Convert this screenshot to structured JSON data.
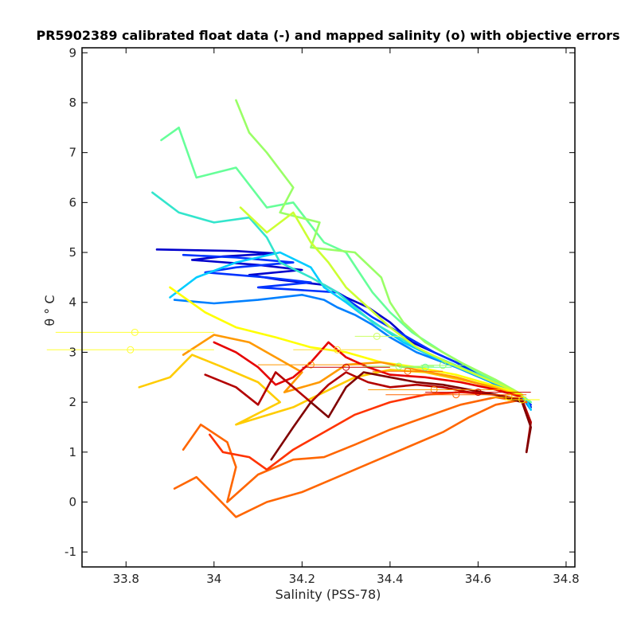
{
  "chart_data": {
    "type": "line",
    "title": "PR5902389 calibrated float data (-) and mapped salinity (o) with objective errors",
    "xlabel": "Salinity (PSS-78)",
    "ylabel": "θ ° C",
    "xlim": [
      33.7,
      34.82
    ],
    "ylim": [
      -1.3,
      9.1
    ],
    "x_ticks": [
      "33.8",
      "34",
      "34.2",
      "34.4",
      "34.6",
      "34.8"
    ],
    "x_tick_values": [
      33.8,
      34.0,
      34.2,
      34.4,
      34.6,
      34.8
    ],
    "y_ticks": [
      "-1",
      "0",
      "1",
      "2",
      "3",
      "4",
      "5",
      "6",
      "7",
      "8",
      "9"
    ],
    "y_tick_values": [
      -1,
      0,
      1,
      2,
      3,
      4,
      5,
      6,
      7,
      8,
      9
    ],
    "grid": false,
    "colormap": "jet",
    "series": [
      {
        "color": "#0000cc",
        "values": [
          [
            33.87,
            5.06
          ],
          [
            34.05,
            5.03
          ],
          [
            34.14,
            4.98
          ],
          [
            34.02,
            4.92
          ],
          [
            33.95,
            4.85
          ],
          [
            34.1,
            4.75
          ],
          [
            34.2,
            4.65
          ],
          [
            34.08,
            4.55
          ],
          [
            34.15,
            4.45
          ],
          [
            34.25,
            4.35
          ],
          [
            34.3,
            4.1
          ],
          [
            34.35,
            3.9
          ],
          [
            34.4,
            3.6
          ],
          [
            34.45,
            3.2
          ],
          [
            34.55,
            2.8
          ],
          [
            34.65,
            2.3
          ],
          [
            34.71,
            2.05
          ],
          [
            34.72,
            1.9
          ]
        ]
      },
      {
        "color": "#0033ff",
        "values": [
          [
            33.93,
            4.95
          ],
          [
            34.05,
            4.9
          ],
          [
            34.18,
            4.8
          ],
          [
            34.05,
            4.7
          ],
          [
            33.98,
            4.6
          ],
          [
            34.12,
            4.5
          ],
          [
            34.22,
            4.4
          ],
          [
            34.1,
            4.3
          ],
          [
            34.28,
            4.2
          ],
          [
            34.32,
            3.95
          ],
          [
            34.36,
            3.7
          ],
          [
            34.42,
            3.4
          ],
          [
            34.5,
            3.0
          ],
          [
            34.6,
            2.6
          ],
          [
            34.68,
            2.2
          ],
          [
            34.72,
            1.95
          ]
        ]
      },
      {
        "color": "#0080ff",
        "values": [
          [
            33.91,
            4.05
          ],
          [
            34.0,
            3.98
          ],
          [
            34.1,
            4.05
          ],
          [
            34.2,
            4.15
          ],
          [
            34.25,
            4.05
          ],
          [
            34.28,
            3.9
          ],
          [
            34.32,
            3.75
          ],
          [
            34.36,
            3.55
          ],
          [
            34.4,
            3.3
          ],
          [
            34.46,
            3.0
          ],
          [
            34.55,
            2.7
          ],
          [
            34.63,
            2.4
          ],
          [
            34.7,
            2.1
          ],
          [
            34.72,
            1.85
          ]
        ]
      },
      {
        "color": "#00ccff",
        "values": [
          [
            33.9,
            4.1
          ],
          [
            33.96,
            4.5
          ],
          [
            34.05,
            4.8
          ],
          [
            34.15,
            5.0
          ],
          [
            34.22,
            4.7
          ],
          [
            34.25,
            4.3
          ],
          [
            34.3,
            4.0
          ],
          [
            34.33,
            3.8
          ],
          [
            34.38,
            3.5
          ],
          [
            34.43,
            3.2
          ],
          [
            34.5,
            2.9
          ],
          [
            34.58,
            2.6
          ],
          [
            34.66,
            2.3
          ],
          [
            34.71,
            2.05
          ],
          [
            34.72,
            1.85
          ]
        ]
      },
      {
        "color": "#33e5cc",
        "values": [
          [
            33.86,
            6.2
          ],
          [
            33.92,
            5.8
          ],
          [
            34.0,
            5.6
          ],
          [
            34.08,
            5.7
          ],
          [
            34.12,
            5.3
          ],
          [
            34.15,
            4.8
          ],
          [
            34.22,
            4.5
          ],
          [
            34.28,
            4.2
          ],
          [
            34.32,
            3.9
          ],
          [
            34.36,
            3.6
          ],
          [
            34.42,
            3.3
          ],
          [
            34.48,
            3.0
          ],
          [
            34.56,
            2.7
          ],
          [
            34.64,
            2.4
          ],
          [
            34.7,
            2.15
          ]
        ]
      },
      {
        "color": "#66ff99",
        "values": [
          [
            33.88,
            7.25
          ],
          [
            33.92,
            7.5
          ],
          [
            33.96,
            6.5
          ],
          [
            34.05,
            6.7
          ],
          [
            34.12,
            5.9
          ],
          [
            34.18,
            6.0
          ],
          [
            34.25,
            5.2
          ],
          [
            34.3,
            5.0
          ],
          [
            34.33,
            4.6
          ],
          [
            34.36,
            4.2
          ],
          [
            34.4,
            3.8
          ],
          [
            34.45,
            3.4
          ],
          [
            34.52,
            3.0
          ],
          [
            34.6,
            2.6
          ],
          [
            34.68,
            2.25
          ],
          [
            34.72,
            2.0
          ]
        ]
      },
      {
        "color": "#99ff66",
        "values": [
          [
            34.05,
            8.05
          ],
          [
            34.08,
            7.4
          ],
          [
            34.12,
            7.0
          ],
          [
            34.18,
            6.3
          ],
          [
            34.15,
            5.8
          ],
          [
            34.24,
            5.6
          ],
          [
            34.22,
            5.1
          ],
          [
            34.32,
            5.0
          ],
          [
            34.38,
            4.5
          ],
          [
            34.4,
            4.0
          ],
          [
            34.43,
            3.6
          ],
          [
            34.48,
            3.2
          ],
          [
            34.56,
            2.8
          ],
          [
            34.64,
            2.45
          ],
          [
            34.7,
            2.15
          ]
        ]
      },
      {
        "color": "#ccff33",
        "values": [
          [
            34.06,
            5.9
          ],
          [
            34.12,
            5.4
          ],
          [
            34.18,
            5.8
          ],
          [
            34.22,
            5.2
          ],
          [
            34.26,
            4.8
          ],
          [
            34.3,
            4.3
          ],
          [
            34.35,
            3.9
          ],
          [
            34.4,
            3.5
          ],
          [
            34.46,
            3.1
          ],
          [
            34.53,
            2.8
          ],
          [
            34.61,
            2.5
          ],
          [
            34.69,
            2.2
          ]
        ]
      },
      {
        "color": "#ffff00",
        "values": [
          [
            33.9,
            4.3
          ],
          [
            33.98,
            3.8
          ],
          [
            34.05,
            3.5
          ],
          [
            34.14,
            3.3
          ],
          [
            34.22,
            3.1
          ],
          [
            34.3,
            3.0
          ],
          [
            34.38,
            2.8
          ],
          [
            34.46,
            2.7
          ],
          [
            34.55,
            2.55
          ],
          [
            34.63,
            2.35
          ],
          [
            34.7,
            2.15
          ]
        ]
      },
      {
        "color": "#ffcc00",
        "values": [
          [
            33.83,
            2.3
          ],
          [
            33.9,
            2.5
          ],
          [
            33.95,
            2.95
          ],
          [
            34.02,
            2.7
          ],
          [
            34.1,
            2.4
          ],
          [
            34.15,
            2.0
          ],
          [
            34.05,
            1.55
          ],
          [
            34.18,
            1.9
          ],
          [
            34.25,
            2.2
          ],
          [
            34.32,
            2.5
          ],
          [
            34.4,
            2.65
          ],
          [
            34.48,
            2.6
          ],
          [
            34.56,
            2.45
          ],
          [
            34.64,
            2.3
          ],
          [
            34.7,
            2.1
          ]
        ]
      },
      {
        "color": "#ff9900",
        "values": [
          [
            33.93,
            2.95
          ],
          [
            34.0,
            3.35
          ],
          [
            34.08,
            3.2
          ],
          [
            34.14,
            2.9
          ],
          [
            34.2,
            2.6
          ],
          [
            34.16,
            2.2
          ],
          [
            34.24,
            2.4
          ],
          [
            34.3,
            2.75
          ],
          [
            34.38,
            2.8
          ],
          [
            34.46,
            2.65
          ],
          [
            34.55,
            2.5
          ],
          [
            34.63,
            2.3
          ],
          [
            34.7,
            2.1
          ]
        ]
      },
      {
        "color": "#ff6600",
        "values": [
          [
            33.91,
            0.27
          ],
          [
            33.96,
            0.5
          ],
          [
            34.0,
            0.15
          ],
          [
            34.05,
            -0.3
          ],
          [
            34.12,
            0.0
          ],
          [
            34.2,
            0.2
          ],
          [
            34.28,
            0.5
          ],
          [
            34.36,
            0.8
          ],
          [
            34.44,
            1.1
          ],
          [
            34.52,
            1.4
          ],
          [
            34.58,
            1.7
          ],
          [
            34.64,
            1.95
          ],
          [
            34.7,
            2.05
          ]
        ]
      },
      {
        "color": "#ff6600",
        "values": [
          [
            33.93,
            1.05
          ],
          [
            33.97,
            1.55
          ],
          [
            34.03,
            1.2
          ],
          [
            34.05,
            0.7
          ],
          [
            34.03,
            0.0
          ],
          [
            34.1,
            0.55
          ],
          [
            34.18,
            0.85
          ],
          [
            34.25,
            0.9
          ],
          [
            34.32,
            1.15
          ],
          [
            34.4,
            1.45
          ],
          [
            34.48,
            1.7
          ],
          [
            34.56,
            1.95
          ],
          [
            34.64,
            2.1
          ],
          [
            34.71,
            2.0
          ]
        ]
      },
      {
        "color": "#ff3300",
        "values": [
          [
            33.99,
            1.35
          ],
          [
            34.02,
            1.0
          ],
          [
            34.08,
            0.9
          ],
          [
            34.12,
            0.65
          ],
          [
            34.18,
            1.05
          ],
          [
            34.25,
            1.4
          ],
          [
            34.32,
            1.75
          ],
          [
            34.4,
            2.0
          ],
          [
            34.48,
            2.15
          ],
          [
            34.56,
            2.2
          ],
          [
            34.64,
            2.15
          ],
          [
            34.7,
            2.05
          ]
        ]
      },
      {
        "color": "#e60000",
        "values": [
          [
            34.0,
            3.2
          ],
          [
            34.05,
            3.0
          ],
          [
            34.1,
            2.7
          ],
          [
            34.14,
            2.35
          ],
          [
            34.18,
            2.5
          ],
          [
            34.22,
            2.8
          ],
          [
            34.26,
            3.2
          ],
          [
            34.3,
            2.9
          ],
          [
            34.35,
            2.7
          ],
          [
            34.4,
            2.55
          ],
          [
            34.48,
            2.5
          ],
          [
            34.56,
            2.4
          ],
          [
            34.64,
            2.25
          ],
          [
            34.7,
            2.1
          ]
        ]
      },
      {
        "color": "#b30000",
        "values": [
          [
            33.98,
            2.55
          ],
          [
            34.05,
            2.3
          ],
          [
            34.1,
            1.95
          ],
          [
            34.14,
            2.6
          ],
          [
            34.18,
            2.3
          ],
          [
            34.22,
            2.0
          ],
          [
            34.26,
            2.35
          ],
          [
            34.3,
            2.6
          ],
          [
            34.35,
            2.4
          ],
          [
            34.4,
            2.3
          ],
          [
            34.46,
            2.35
          ],
          [
            34.52,
            2.3
          ],
          [
            34.58,
            2.2
          ],
          [
            34.64,
            2.15
          ],
          [
            34.7,
            2.05
          ],
          [
            34.72,
            1.6
          ],
          [
            34.71,
            1.0
          ]
        ]
      },
      {
        "color": "#800000",
        "values": [
          [
            34.13,
            0.85
          ],
          [
            34.18,
            1.5
          ],
          [
            34.22,
            2.0
          ],
          [
            34.26,
            1.7
          ],
          [
            34.3,
            2.3
          ],
          [
            34.34,
            2.6
          ],
          [
            34.4,
            2.5
          ],
          [
            34.46,
            2.4
          ],
          [
            34.52,
            2.35
          ],
          [
            34.58,
            2.25
          ],
          [
            34.64,
            2.15
          ],
          [
            34.7,
            2.0
          ],
          [
            34.72,
            1.5
          ],
          [
            34.71,
            1.0
          ]
        ]
      }
    ],
    "mapped_salinity": [
      {
        "x": 33.82,
        "y": 3.4,
        "err": 0.18,
        "color": "#ffff33"
      },
      {
        "x": 33.81,
        "y": 3.05,
        "err": 0.19,
        "color": "#ffff33"
      },
      {
        "x": 34.37,
        "y": 3.32,
        "err": 0.05,
        "color": "#ccff66"
      },
      {
        "x": 34.28,
        "y": 3.05,
        "err": 0.1,
        "color": "#ffdd33"
      },
      {
        "x": 34.22,
        "y": 2.75,
        "err": 0.12,
        "color": "#ff9900"
      },
      {
        "x": 34.3,
        "y": 2.7,
        "err": 0.1,
        "color": "#cc0000"
      },
      {
        "x": 34.42,
        "y": 2.72,
        "err": 0.08,
        "color": "#99ff66"
      },
      {
        "x": 34.48,
        "y": 2.7,
        "err": 0.06,
        "color": "#66ff99"
      },
      {
        "x": 34.52,
        "y": 2.74,
        "err": 0.05,
        "color": "#99ff66"
      },
      {
        "x": 34.44,
        "y": 2.62,
        "err": 0.08,
        "color": "#ff6600"
      },
      {
        "x": 34.5,
        "y": 2.25,
        "err": 0.15,
        "color": "#ff9900"
      },
      {
        "x": 34.55,
        "y": 2.15,
        "err": 0.16,
        "color": "#ff6600"
      },
      {
        "x": 34.6,
        "y": 2.2,
        "err": 0.12,
        "color": "#cc0000"
      },
      {
        "x": 34.67,
        "y": 2.1,
        "err": 0.04,
        "color": "#ffcc00"
      },
      {
        "x": 34.7,
        "y": 2.05,
        "err": 0.04,
        "color": "#ffff00"
      }
    ]
  }
}
